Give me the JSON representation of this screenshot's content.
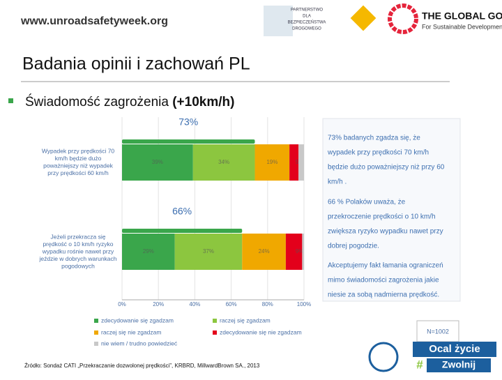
{
  "header": {
    "url": "www.unroadsafetyweek.org",
    "partner_logo": [
      "PARTNERSTWO",
      "DLA",
      "BEZPIECZEŃSTWA",
      "DROGOWEGO"
    ],
    "goals_title": "THE GLOBAL GOALS",
    "goals_subtitle": "For Sustainable Development"
  },
  "slide": {
    "title": "Badania opinii i zachowań PL",
    "bullet": "Świadomość zagrożenia",
    "bullet_bold": "(+10km/h)",
    "notes": [
      [
        "73% badanych zgadza się, że",
        "wypadek przy  prędkości 70 km/h",
        "będzie dużo poważniejszy niż przy 60",
        "km/h ."
      ],
      [
        "66 % Polaków uważa, że",
        "przekroczenie prędkości o 10 km/h",
        "zwiększa ryzyko wypadku nawet przy",
        "dobrej pogodzie."
      ],
      [
        "Akceptujemy fakt łamania ograniczeń",
        "mimo świadomości zagrożenia jakie",
        "niesie za sobą nadmierna prędkość."
      ]
    ],
    "sample": "N=1002",
    "source": "Źródło: Sondaż CATI „Przekraczanie dozwolonej prędkości”, KRBRD, MillwardBrown SA., 2013",
    "campaign": [
      "Ocal życie",
      "#",
      "Zwolnij"
    ]
  },
  "chart_data": {
    "type": "stacked-bar-horizontal",
    "categories": [
      [
        "Wypadek przy prędkości 70",
        "km/h będzie dużo",
        "poważniejszy niż wypadek",
        "przy prędkości 60 km/h"
      ],
      [
        "Jeżeli przekracza się",
        "prędkość o 10 km/h ryzyko",
        "wypadku rośnie nawet przy",
        "jeździe w dobrych warunkach",
        "pogodowych"
      ]
    ],
    "series": [
      {
        "name": "zdecydowanie się zgadzam",
        "color": "#3aa64b",
        "values": [
          39,
          29
        ],
        "value_labels": [
          "39%",
          "29%"
        ]
      },
      {
        "name": "raczej się zgadzam",
        "color": "#8cc63f",
        "values": [
          34,
          37
        ],
        "value_labels": [
          "34%",
          "37%"
        ]
      },
      {
        "name": "raczej się nie zgadzam",
        "color": "#f0a800",
        "values": [
          19,
          24
        ],
        "value_labels": [
          "19%",
          "24%"
        ]
      },
      {
        "name": "zdecydowanie się nie zgadzam",
        "color": "#e3001b",
        "values": [
          5,
          9
        ],
        "value_labels": [
          "5%",
          "9%"
        ]
      },
      {
        "name": "nie wiem / trudno powiedzieć",
        "color": "#c8c8c8",
        "values": [
          3,
          1
        ]
      }
    ],
    "annotations": [
      "73%",
      "66%"
    ],
    "xlim": [
      0,
      100
    ],
    "xticks": [
      {
        "value": 0,
        "label": "0%"
      },
      {
        "value": 20,
        "label": "20%"
      },
      {
        "value": 40,
        "label": "40%"
      },
      {
        "value": 60,
        "label": "60%"
      },
      {
        "value": 80,
        "label": "80%"
      },
      {
        "value": 100,
        "label": "100%"
      }
    ],
    "grid": true
  }
}
